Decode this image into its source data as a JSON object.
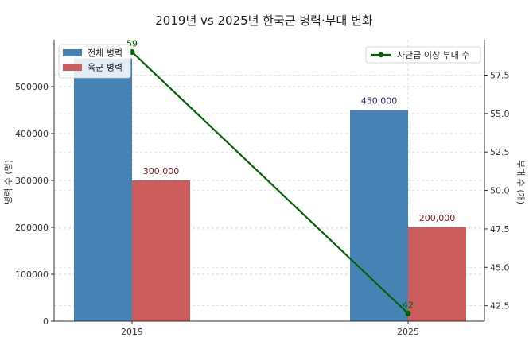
{
  "chart_data": {
    "type": "bar",
    "title": "2019년 vs 2025년 한국군 병력·부대 변화",
    "categories": [
      "2019",
      "2025"
    ],
    "ylabel_left": "병력 수 (명)",
    "ylabel_right": "부대 수 (개)",
    "ylim_left": [
      0,
      600000
    ],
    "ylim_right": [
      41.5,
      59.8
    ],
    "yticks_left": [
      "0",
      "100000",
      "200000",
      "300000",
      "400000",
      "500000"
    ],
    "yticks_right": [
      "42.5",
      "45.0",
      "47.5",
      "50.0",
      "52.5",
      "55.0",
      "57.5"
    ],
    "grid": true,
    "series": [
      {
        "name": "전체 병력",
        "kind": "bar",
        "axis": "left",
        "values": [
          560000,
          450000
        ],
        "labels": [
          "560,000",
          "450,000"
        ],
        "color": "#4682b4",
        "label_color": "#2b2b8a"
      },
      {
        "name": "육군 병력",
        "kind": "bar",
        "axis": "left",
        "values": [
          300000,
          200000
        ],
        "labels": [
          "300,000",
          "200,000"
        ],
        "color": "#cd5c5c",
        "label_color": "#8b1a1a"
      },
      {
        "name": "사단급 이상 부대 수",
        "kind": "line",
        "axis": "right",
        "values": [
          59,
          42
        ],
        "labels": [
          "59",
          "42"
        ],
        "color": "#006400",
        "label_color": "#006400"
      }
    ],
    "legend_left_placement": "top-left",
    "legend_right_placement": "top-right"
  }
}
